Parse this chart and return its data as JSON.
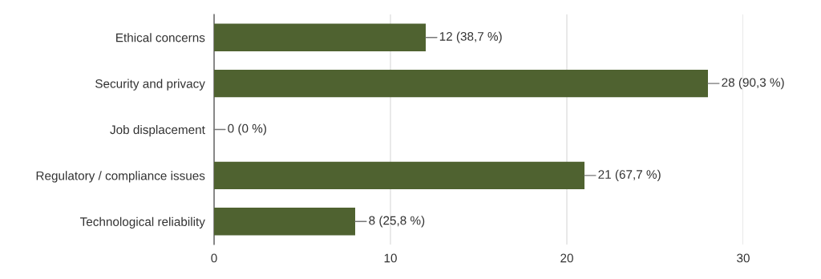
{
  "chart_data": {
    "type": "bar",
    "orientation": "horizontal",
    "categories": [
      "Ethical concerns",
      "Security and privacy",
      "Job displacement",
      "Regulatory / compliance issues",
      "Technological reliability"
    ],
    "values": [
      12,
      28,
      0,
      21,
      8
    ],
    "value_labels": [
      "12 (38,7 %)",
      "28 (90,3 %)",
      "0 (0 %)",
      "21 (67,7 %)",
      "8 (25,8 %)"
    ],
    "color": "#4f6230",
    "xlim": [
      0,
      30
    ],
    "xticks": [
      0,
      10,
      20,
      30
    ],
    "grid": "x"
  }
}
